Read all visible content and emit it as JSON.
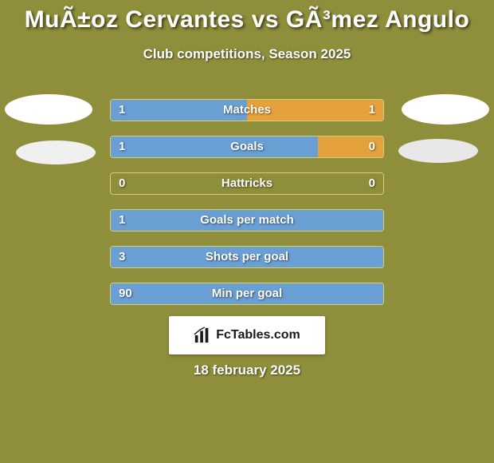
{
  "background_color": "#8f8e3b",
  "title": "MuÃ±oz Cervantes vs GÃ³mez Angulo",
  "title_fontsize": 30,
  "title_color": "#ffffff",
  "subtitle": "Club competitions, Season 2025",
  "subtitle_fontsize": 17,
  "subtitle_color": "#ffffff",
  "fill_left_color": "#6a9fd4",
  "fill_right_color": "#e5a23c",
  "row_border_color": "#d4d071",
  "ellipse_left_color": "#ffffff",
  "ellipse_right_color": "#ffffff",
  "crest_left_color": "#f0f0f0",
  "crest_right_color": "#e8e8e8",
  "row_label_fontsize": 15,
  "row_value_fontsize": 15,
  "rows": [
    {
      "label": "Matches",
      "left": "1",
      "right": "1",
      "left_pct": 50,
      "right_pct": 50
    },
    {
      "label": "Goals",
      "left": "1",
      "right": "0",
      "left_pct": 76,
      "right_pct": 24
    },
    {
      "label": "Hattricks",
      "left": "0",
      "right": "0",
      "left_pct": 0,
      "right_pct": 0
    },
    {
      "label": "Goals per match",
      "left": "1",
      "right": "",
      "left_pct": 100,
      "right_pct": 0
    },
    {
      "label": "Shots per goal",
      "left": "3",
      "right": "",
      "left_pct": 100,
      "right_pct": 0
    },
    {
      "label": "Min per goal",
      "left": "90",
      "right": "",
      "left_pct": 100,
      "right_pct": 0
    }
  ],
  "branding_text": "FcTables.com",
  "branding_bg": "#ffffff",
  "branding_text_color": "#1a1a1a",
  "date": "18 february 2025",
  "date_fontsize": 17,
  "date_color": "#ffffff"
}
